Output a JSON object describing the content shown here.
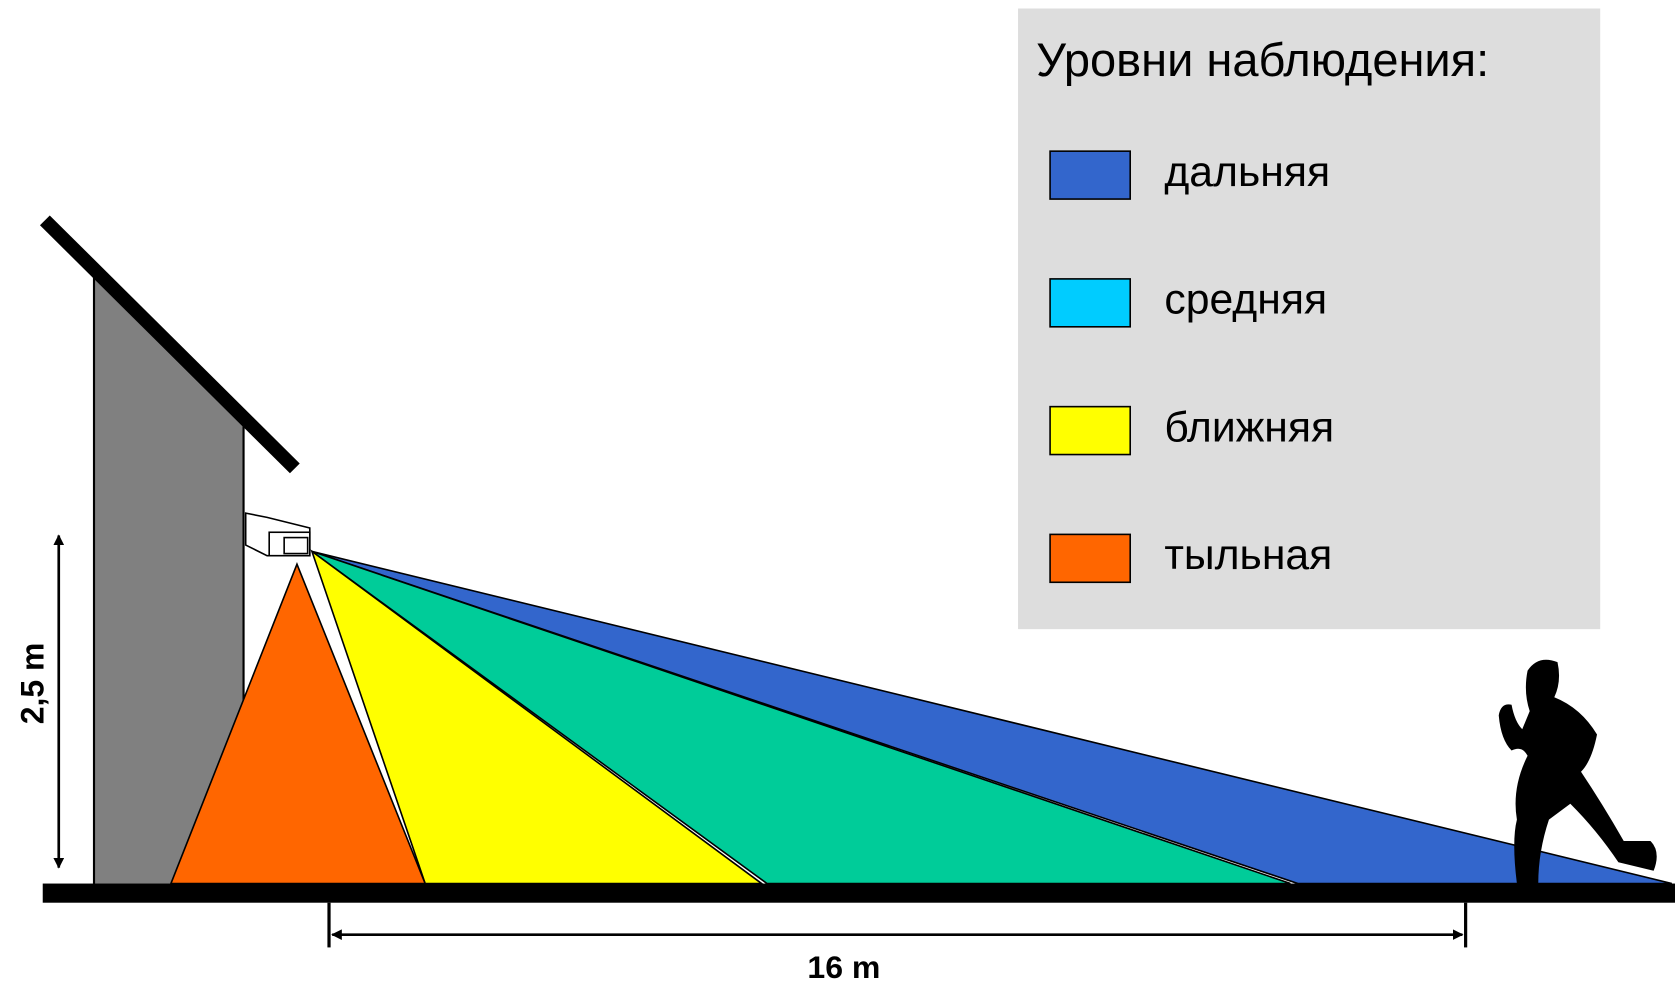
{
  "legend": {
    "title": "Уровни наблюдения:",
    "items": [
      {
        "label": "дальняя",
        "color": "#3366cc"
      },
      {
        "label": "средняя",
        "color": "#00ccff"
      },
      {
        "label": "ближняя",
        "color": "#ffff00"
      },
      {
        "label": "тыльная",
        "color": "#ff6600"
      }
    ]
  },
  "dimensions": {
    "height": "2,5 m",
    "distance": "16 m"
  }
}
